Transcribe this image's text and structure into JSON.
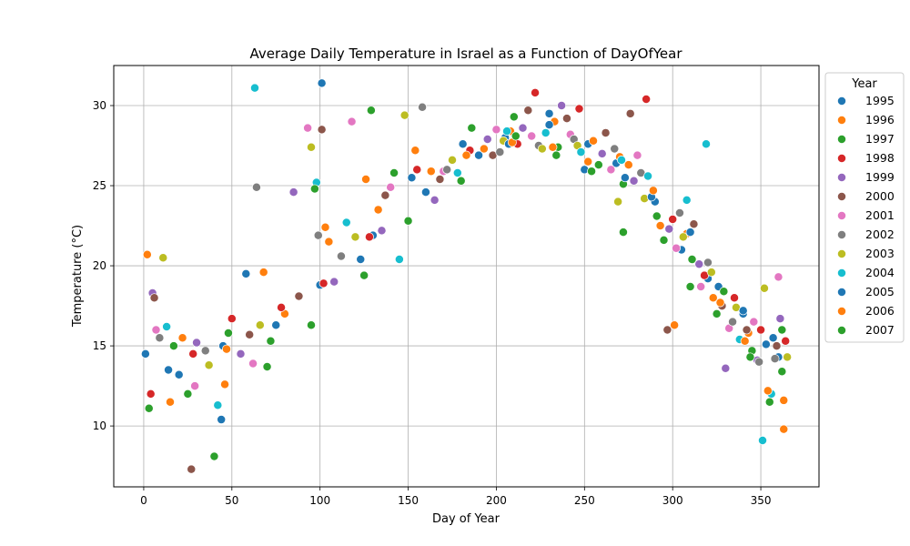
{
  "chart_data": {
    "type": "scatter",
    "title": "Average Daily Temperature in Israel as a Function of DayOfYear",
    "xlabel": "Day of Year",
    "ylabel": "Temperature (°C)",
    "xlim": [
      -17,
      383
    ],
    "ylim": [
      6.2,
      32.5
    ],
    "xticks": [
      0,
      50,
      100,
      150,
      200,
      250,
      300,
      350
    ],
    "yticks": [
      10,
      15,
      20,
      25,
      30
    ],
    "grid": true,
    "legend": {
      "title": "Year",
      "position": "outside-top-right"
    },
    "series": [
      {
        "name": "1995",
        "color": "#1f77b4",
        "x": [
          1,
          20,
          45,
          75,
          100,
          130,
          160,
          190,
          205,
          230,
          252,
          268,
          290,
          305,
          320,
          340,
          360
        ],
        "y": [
          14.5,
          13.2,
          15.0,
          16.3,
          18.8,
          21.9,
          24.6,
          26.9,
          28.0,
          29.5,
          27.6,
          26.4,
          24.0,
          21.0,
          19.2,
          17.0,
          14.3
        ]
      },
      {
        "name": "1996",
        "color": "#ff7f0e",
        "x": [
          2,
          22,
          47,
          80,
          105,
          133,
          163,
          193,
          208,
          233,
          255,
          270,
          293,
          308,
          323,
          343,
          363
        ],
        "y": [
          20.7,
          15.5,
          14.8,
          17.0,
          21.5,
          23.5,
          25.9,
          27.3,
          28.4,
          29.0,
          27.8,
          26.8,
          22.5,
          22.0,
          18.0,
          15.8,
          9.8
        ]
      },
      {
        "name": "1997",
        "color": "#2ca02c",
        "x": [
          3,
          25,
          40,
          70,
          95,
          125,
          150,
          180,
          210,
          235,
          258,
          272,
          295,
          310,
          325,
          345,
          362
        ],
        "y": [
          11.1,
          12.0,
          8.1,
          13.7,
          16.3,
          19.4,
          22.8,
          25.3,
          29.3,
          27.4,
          26.3,
          25.1,
          21.6,
          18.7,
          17.0,
          14.7,
          13.4
        ]
      },
      {
        "name": "1998",
        "color": "#d62728",
        "x": [
          4,
          28,
          50,
          78,
          102,
          128,
          155,
          185,
          212,
          222,
          247,
          285,
          300,
          318,
          335,
          350,
          364
        ],
        "y": [
          12.0,
          14.5,
          16.7,
          17.4,
          18.9,
          21.8,
          26.0,
          27.2,
          27.6,
          30.8,
          29.8,
          30.4,
          22.9,
          19.4,
          18.0,
          16.0,
          15.3
        ]
      },
      {
        "name": "1999",
        "color": "#9467bd",
        "x": [
          5,
          30,
          55,
          85,
          108,
          135,
          165,
          195,
          215,
          237,
          260,
          278,
          298,
          315,
          330,
          348,
          361
        ],
        "y": [
          18.3,
          15.2,
          14.5,
          24.6,
          19.0,
          22.2,
          24.1,
          27.9,
          28.6,
          30.0,
          27.0,
          25.3,
          22.3,
          20.1,
          13.6,
          14.1,
          16.7
        ]
      },
      {
        "name": "2000",
        "color": "#8c564b",
        "x": [
          6,
          27,
          60,
          88,
          101,
          137,
          168,
          198,
          218,
          240,
          262,
          276,
          297,
          312,
          328,
          342,
          359
        ],
        "y": [
          18.0,
          7.3,
          15.7,
          18.1,
          28.5,
          24.4,
          25.4,
          26.9,
          29.7,
          29.2,
          28.3,
          29.5,
          16.0,
          22.6,
          17.5,
          16.0,
          15.0
        ]
      },
      {
        "name": "2001",
        "color": "#e377c2",
        "x": [
          7,
          29,
          62,
          93,
          118,
          140,
          170,
          200,
          220,
          242,
          265,
          280,
          302,
          316,
          332,
          346,
          360
        ],
        "y": [
          16.0,
          12.5,
          13.9,
          28.6,
          29.0,
          24.9,
          25.9,
          28.5,
          28.1,
          28.2,
          26.0,
          26.9,
          21.1,
          18.7,
          16.1,
          16.5,
          19.3
        ]
      },
      {
        "name": "2002",
        "color": "#7f7f7f",
        "x": [
          9,
          35,
          64,
          99,
          112,
          158,
          172,
          202,
          224,
          244,
          267,
          282,
          304,
          320,
          334,
          349,
          358
        ],
        "y": [
          15.5,
          14.7,
          24.9,
          21.9,
          20.6,
          29.9,
          26.0,
          27.1,
          27.5,
          27.9,
          27.3,
          25.8,
          23.3,
          20.2,
          16.5,
          14.0,
          14.2
        ]
      },
      {
        "name": "2003",
        "color": "#bcbd22",
        "x": [
          11,
          37,
          66,
          95,
          120,
          148,
          175,
          204,
          226,
          246,
          269,
          284,
          306,
          322,
          336,
          352,
          365
        ],
        "y": [
          20.5,
          13.8,
          16.3,
          27.4,
          21.8,
          29.4,
          26.6,
          27.8,
          27.3,
          27.5,
          24.0,
          24.2,
          21.8,
          19.6,
          17.4,
          18.6,
          14.3
        ]
      },
      {
        "name": "2004",
        "color": "#17becf",
        "x": [
          13,
          42,
          63,
          98,
          115,
          145,
          178,
          206,
          228,
          248,
          271,
          286,
          308,
          319,
          338,
          351,
          356
        ],
        "y": [
          16.2,
          11.3,
          31.1,
          25.2,
          22.7,
          20.4,
          25.8,
          28.4,
          28.3,
          27.1,
          26.6,
          25.6,
          24.1,
          27.6,
          15.4,
          9.1,
          12.0
        ]
      },
      {
        "name": "2005",
        "color": "#1f77b4",
        "x": [
          14,
          44,
          58,
          101,
          123,
          152,
          181,
          207,
          230,
          250,
          273,
          288,
          310,
          326,
          340,
          353,
          357
        ],
        "y": [
          13.5,
          10.4,
          19.5,
          31.4,
          20.4,
          25.5,
          27.6,
          27.6,
          28.8,
          26.0,
          25.5,
          24.3,
          22.1,
          18.7,
          17.2,
          15.1,
          15.5
        ]
      },
      {
        "name": "2006",
        "color": "#ff7f0e",
        "x": [
          15,
          46,
          68,
          103,
          126,
          154,
          183,
          209,
          232,
          252,
          275,
          289,
          301,
          327,
          341,
          354,
          363
        ],
        "y": [
          11.5,
          12.6,
          19.6,
          22.4,
          25.4,
          27.2,
          26.9,
          27.7,
          27.4,
          26.5,
          26.3,
          24.7,
          16.3,
          17.7,
          15.3,
          12.2,
          11.6
        ]
      },
      {
        "name": "2007",
        "color": "#2ca02c",
        "x": [
          17,
          48,
          72,
          97,
          129,
          142,
          186,
          211,
          234,
          254,
          272,
          291,
          311,
          329,
          344,
          355,
          362
        ],
        "y": [
          15.0,
          15.8,
          15.3,
          24.8,
          29.7,
          25.8,
          28.6,
          28.1,
          26.9,
          25.9,
          22.1,
          23.1,
          20.4,
          18.4,
          14.3,
          11.5,
          16.0
        ]
      }
    ]
  }
}
